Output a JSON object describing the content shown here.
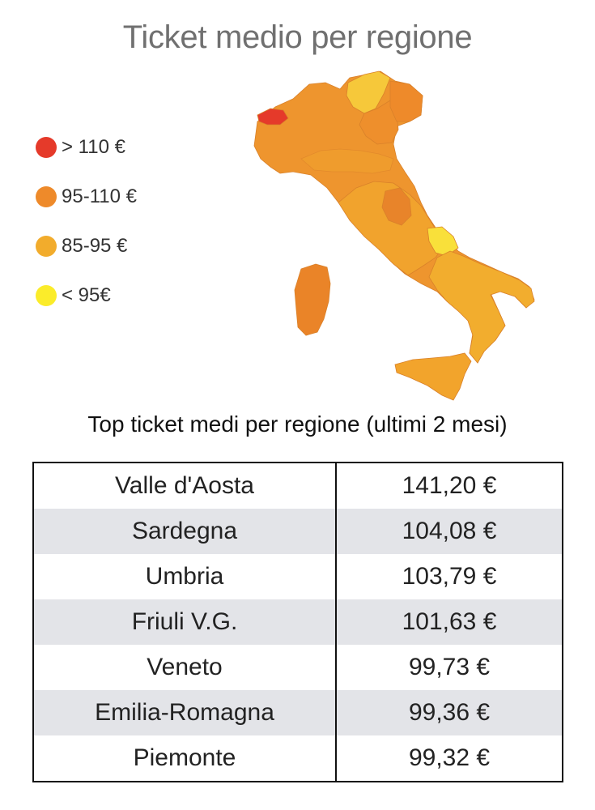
{
  "title": "Ticket medio per regione",
  "legend": [
    {
      "label": "> 110 €",
      "color": "#e53a2a"
    },
    {
      "label": "95-110 €",
      "color": "#ee8a2a"
    },
    {
      "label": "85-95 €",
      "color": "#f2ac2c"
    },
    {
      "label": "< 95€",
      "color": "#fbec2a"
    }
  ],
  "map": {
    "colors": {
      "valle_daosta": "#e53a2a",
      "north": "#ee952e",
      "trentino": "#f6c83a",
      "veneto": "#ee8f2c",
      "friuli": "#ee8a2a",
      "umbria": "#e8842a",
      "center": "#f1a32d",
      "molise": "#f9e03a",
      "south": "#f2ad2e",
      "sardegna": "#ea8428",
      "sicilia": "#f2a42c"
    }
  },
  "subtitle": "Top ticket medi per regione (ultimi 2 mesi)",
  "table": {
    "rows": [
      {
        "region": "Valle d'Aosta",
        "value": "141,20 €"
      },
      {
        "region": "Sardegna",
        "value": "104,08 €"
      },
      {
        "region": "Umbria",
        "value": "103,79 €"
      },
      {
        "region": "Friuli V.G.",
        "value": "101,63 €"
      },
      {
        "region": "Veneto",
        "value": "99,73 €"
      },
      {
        "region": "Emilia-Romagna",
        "value": "99,36 €"
      },
      {
        "region": "Piemonte",
        "value": "99,32 €"
      }
    ]
  }
}
